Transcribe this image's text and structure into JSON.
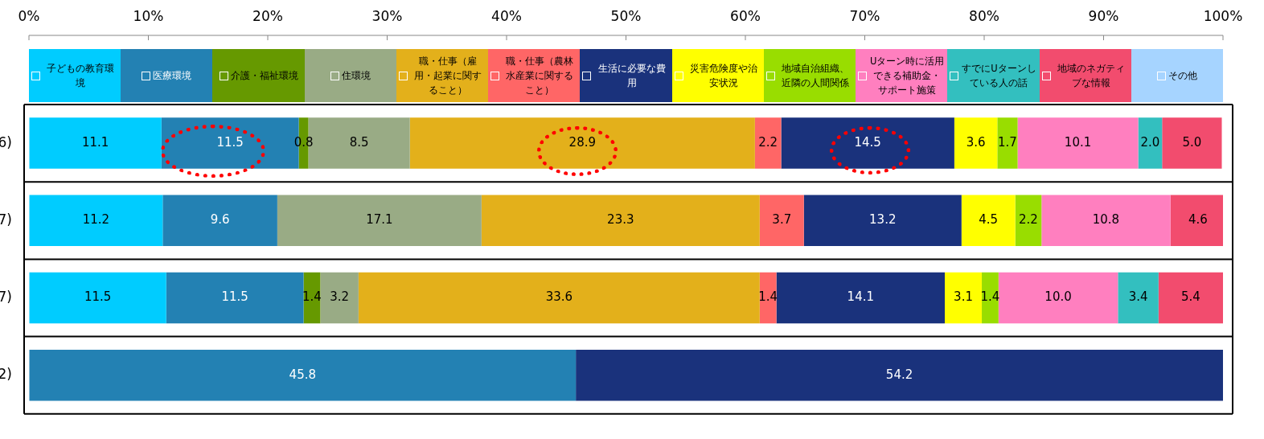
{
  "chart_data": {
    "type": "bar",
    "orientation": "horizontal",
    "stacked": true,
    "legend": "top",
    "categories": [
      "6)",
      "7)",
      "7)",
      "2)"
    ],
    "xlim": [
      0,
      100
    ],
    "xticks": [
      {
        "value": 0,
        "label": "0%"
      },
      {
        "value": 10,
        "label": "10%"
      },
      {
        "value": 20,
        "label": "20%"
      },
      {
        "value": 30,
        "label": "30%"
      },
      {
        "value": 40,
        "label": "40%"
      },
      {
        "value": 50,
        "label": "50%"
      },
      {
        "value": 60,
        "label": "60%"
      },
      {
        "value": 70,
        "label": "70%"
      },
      {
        "value": 80,
        "label": "80%"
      },
      {
        "value": 90,
        "label": "90%"
      },
      {
        "value": 100,
        "label": "100%"
      }
    ],
    "series": [
      {
        "name": "子どもの教育環境",
        "color": "#00ccff",
        "values": [
          11.1,
          11.2,
          11.5,
          null
        ],
        "value_labels": [
          "11.1",
          "11.2",
          "11.5",
          null
        ]
      },
      {
        "name": "医療環境",
        "color": "#2381b3",
        "values": [
          11.5,
          9.6,
          11.5,
          45.8
        ],
        "value_labels": [
          "11.5",
          "9.6",
          "11.5",
          "45.8"
        ]
      },
      {
        "name": "介護・福祉環境",
        "color": "#669900",
        "values": [
          0.8,
          null,
          1.4,
          null
        ],
        "value_labels": [
          "0.8",
          null,
          "1.4",
          null
        ]
      },
      {
        "name": "住環境",
        "color": "#99ab85",
        "values": [
          8.5,
          17.1,
          3.2,
          null
        ],
        "value_labels": [
          "8.5",
          "17.1",
          "3.2",
          null
        ]
      },
      {
        "name": "職・仕事（雇用・起業に関すること）",
        "color": "#e3b01b",
        "values": [
          28.9,
          23.3,
          33.6,
          null
        ],
        "value_labels": [
          "28.9",
          "23.3",
          "33.6",
          null
        ]
      },
      {
        "name": "職・仕事（農林水産業に関すること）",
        "color": "#ff6666",
        "values": [
          2.2,
          3.7,
          1.4,
          null
        ],
        "value_labels": [
          "2.2",
          "3.7",
          "1.4",
          null
        ]
      },
      {
        "name": "生活に必要な費用",
        "color": "#1a327c",
        "values": [
          14.5,
          13.2,
          14.1,
          54.2
        ],
        "value_labels": [
          "14.5",
          "13.2",
          "14.1",
          "54.2"
        ]
      },
      {
        "name": "災害危険度や治安状況",
        "color": "#ffff00",
        "values": [
          3.6,
          4.5,
          3.1,
          null
        ],
        "value_labels": [
          "3.6",
          "4.5",
          "3.1",
          null
        ]
      },
      {
        "name": "地域自治組織、近隣の人間関係",
        "color": "#99dd00",
        "values": [
          1.7,
          2.2,
          1.4,
          null
        ],
        "value_labels": [
          "1.7",
          "2.2",
          "1.4",
          null
        ]
      },
      {
        "name": "Uターン時に活用できる補助金・サポート施策",
        "color": "#ff7fbf",
        "values": [
          10.1,
          10.8,
          10.0,
          null
        ],
        "value_labels": [
          "10.1",
          "10.8",
          "10.0",
          null
        ]
      },
      {
        "name": "すでにUターンしている人の話",
        "color": "#33bfbf",
        "values": [
          2.0,
          null,
          3.4,
          null
        ],
        "value_labels": [
          "2.0",
          null,
          "3.4",
          null
        ]
      },
      {
        "name": "地域のネガティブな情報",
        "color": "#f24c6e",
        "values": [
          5.0,
          4.6,
          5.4,
          null
        ],
        "value_labels": [
          "5.0",
          "4.6",
          "5.4",
          null
        ]
      },
      {
        "name": "その他",
        "color": "#a6d4ff",
        "values": [
          null,
          null,
          null,
          null
        ]
      }
    ]
  }
}
